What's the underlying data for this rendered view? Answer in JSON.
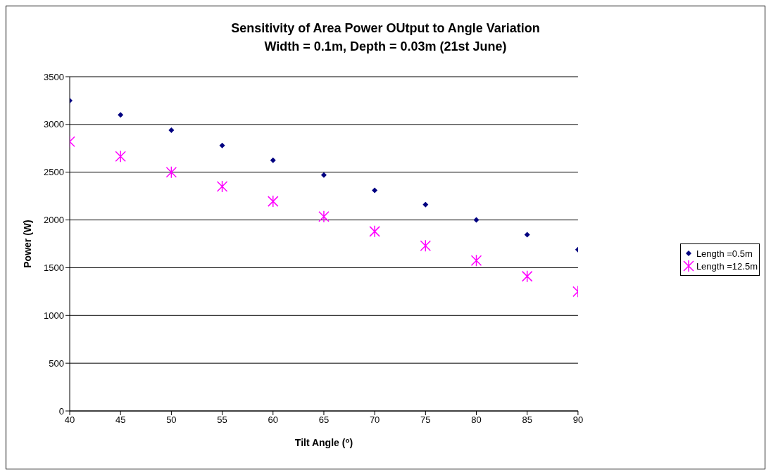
{
  "chart_data": {
    "type": "scatter",
    "title": "Sensitivity of Area Power OUtput to Angle Variation",
    "subtitle": "Width = 0.1m, Depth = 0.03m (21st June)",
    "xlabel": "Tilt Angle ($^{o}$)",
    "ylabel": "Power (W)",
    "x": [
      40,
      45,
      50,
      55,
      60,
      65,
      70,
      75,
      80,
      85,
      90
    ],
    "series": [
      {
        "name": "Length =0.5m",
        "color": "#000080",
        "marker": "diamond",
        "values": [
          3250,
          3100,
          2940,
          2780,
          2625,
          2470,
          2310,
          2160,
          2000,
          1845,
          1690
        ]
      },
      {
        "name": "Length =12.5m",
        "color": "#ff00ff",
        "marker": "cross",
        "values": [
          2820,
          2665,
          2500,
          2350,
          2195,
          2035,
          1880,
          1730,
          1575,
          1410,
          1250
        ]
      }
    ],
    "xlim": [
      40,
      90
    ],
    "xticks": [
      40,
      45,
      50,
      55,
      60,
      65,
      70,
      75,
      80,
      85,
      90
    ],
    "ylim": [
      0,
      3500
    ],
    "yticks": [
      0,
      500,
      1000,
      1500,
      2000,
      2500,
      3000,
      3500
    ],
    "grid": "y",
    "legend": "right"
  }
}
